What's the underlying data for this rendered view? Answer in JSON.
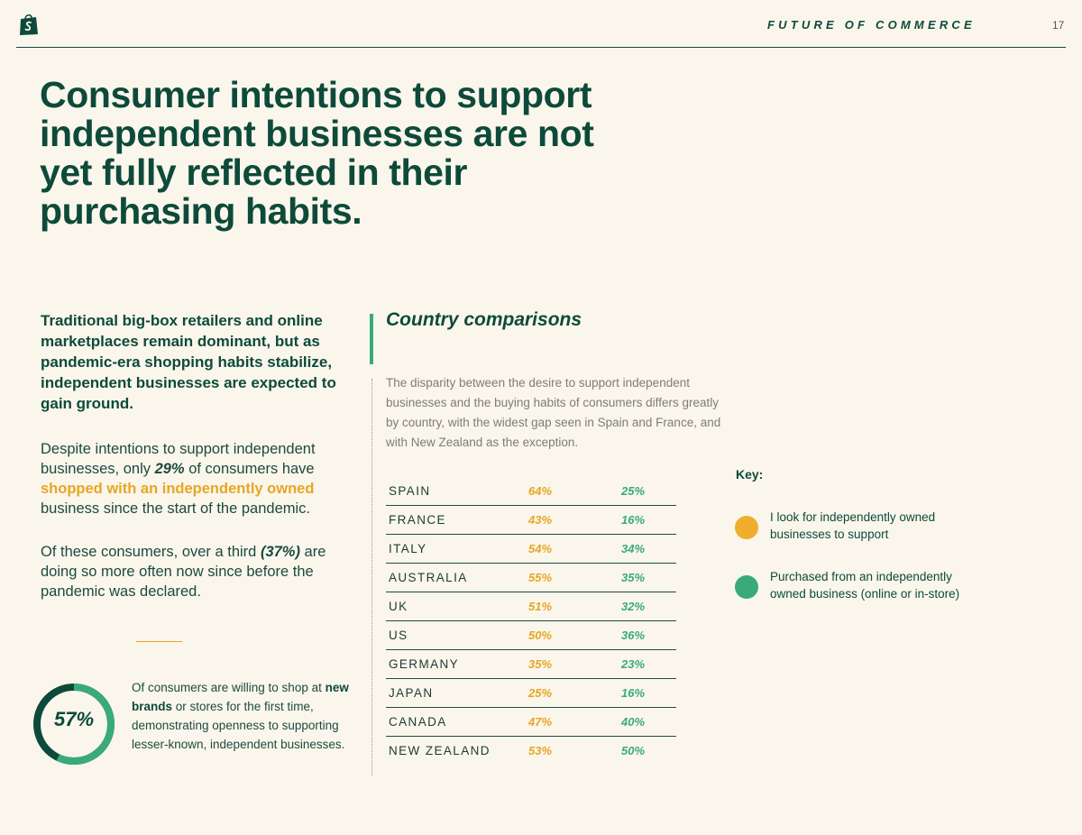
{
  "header": {
    "title": "FUTURE OF COMMERCE",
    "page_number": "17",
    "logo_icon": "shopify-bag-icon"
  },
  "headline": "Consumer intentions to support independent businesses are not yet fully reflected in their purchasing habits.",
  "lead": "Traditional big-box retailers and online marketplaces remain dominant, but as pandemic-era shopping habits stabilize, independent businesses are expected to gain ground.",
  "paragraph1": {
    "before": "Despite intentions to support independent businesses, only ",
    "stat": "29%",
    "middle": " of consumers have ",
    "highlight": "shopped with an independently owned",
    "after": " business since the start of the pandemic."
  },
  "paragraph2": {
    "before": "Of these consumers, over a third ",
    "stat": "(37%)",
    "after": " are doing so more often now since before the pandemic was declared."
  },
  "stat_card": {
    "value": "57%",
    "percent": 57,
    "text_before": "Of consumers are willing to shop at ",
    "text_bold": "new brands",
    "text_after": " or stores for the first time, demonstrating openness to supporting lesser-known, independent businesses."
  },
  "section": {
    "title": "Country comparisons",
    "description": "The disparity between the desire to support independent businesses and the buying habits of consumers differs greatly by country, with the widest gap seen in Spain and France, and with New Zealand as the exception."
  },
  "table": {
    "rows": [
      {
        "country": "SPAIN",
        "look": "64%",
        "purchased": "25%"
      },
      {
        "country": "FRANCE",
        "look": "43%",
        "purchased": "16%"
      },
      {
        "country": "ITALY",
        "look": "54%",
        "purchased": "34%"
      },
      {
        "country": "AUSTRALIA",
        "look": "55%",
        "purchased": "35%"
      },
      {
        "country": "UK",
        "look": "51%",
        "purchased": "32%"
      },
      {
        "country": "US",
        "look": "50%",
        "purchased": "36%"
      },
      {
        "country": "GERMANY",
        "look": "35%",
        "purchased": "23%"
      },
      {
        "country": "JAPAN",
        "look": "25%",
        "purchased": "16%"
      },
      {
        "country": "CANADA",
        "look": "47%",
        "purchased": "40%"
      },
      {
        "country": "NEW ZEALAND",
        "look": "53%",
        "purchased": "50%"
      }
    ]
  },
  "key": {
    "title": "Key:",
    "items": [
      {
        "label": "I look for independently owned businesses to support",
        "color": "#f0ad2e"
      },
      {
        "label": "Purchased from an independently owned business (online or in-store)",
        "color": "#3aaa7b"
      }
    ]
  },
  "colors": {
    "primary": "#0d4a3a",
    "amber": "#e7a623",
    "green": "#3aaa7b",
    "background": "#faf6ec"
  }
}
